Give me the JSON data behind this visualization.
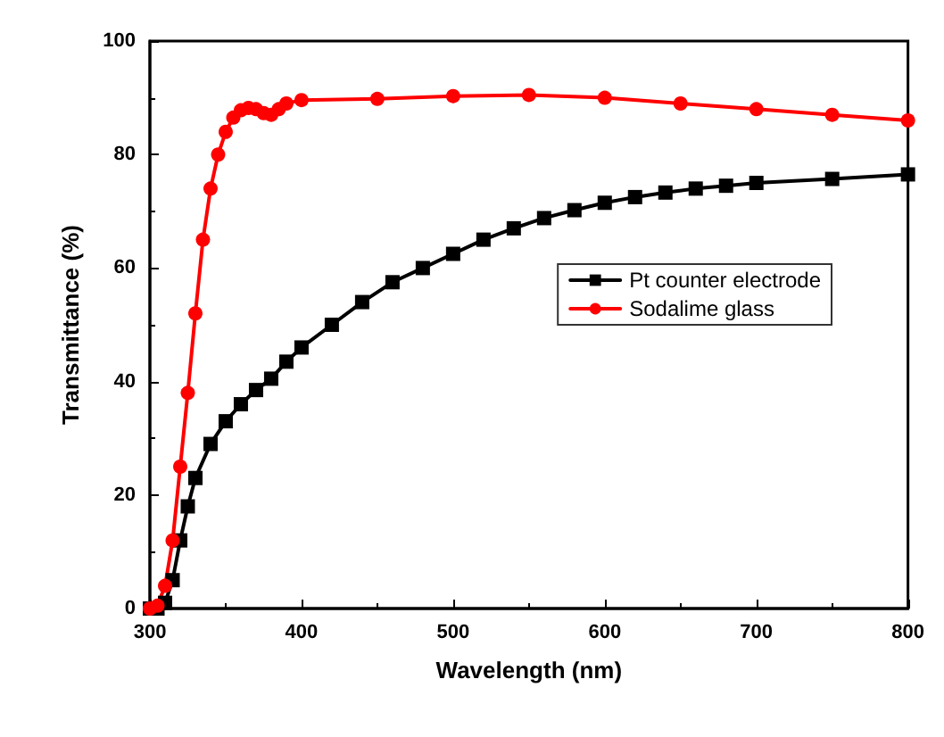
{
  "chart_data": {
    "type": "line",
    "xlabel": "Wavelength (nm)",
    "ylabel": "Transmittance (%)",
    "xlim": [
      300,
      800
    ],
    "xticks": [
      300,
      400,
      500,
      600,
      700,
      800
    ],
    "ylim": [
      0,
      100
    ],
    "yticks": [
      0,
      20,
      40,
      60,
      80,
      100
    ],
    "grid": false,
    "legend": "right",
    "series": [
      {
        "name": "Pt counter electrode",
        "color": "#000000",
        "marker": "square",
        "x": [
          300,
          305,
          310,
          315,
          320,
          325,
          330,
          340,
          350,
          360,
          370,
          380,
          390,
          400,
          420,
          440,
          460,
          480,
          500,
          520,
          540,
          560,
          580,
          600,
          620,
          640,
          660,
          680,
          700,
          750,
          800
        ],
        "values": [
          0,
          0,
          1,
          5,
          12,
          18,
          23,
          29,
          33,
          36,
          38.5,
          40.5,
          43.5,
          46,
          50,
          54,
          57.5,
          60,
          62.5,
          65,
          67,
          68.8,
          70.2,
          71.5,
          72.5,
          73.3,
          74,
          74.5,
          75,
          75.7,
          76.5
        ]
      },
      {
        "name": "Sodalime glass",
        "color": "#ff0000",
        "marker": "circle",
        "x": [
          300,
          305,
          310,
          315,
          320,
          325,
          330,
          335,
          340,
          345,
          350,
          355,
          360,
          365,
          370,
          375,
          380,
          385,
          390,
          400,
          450,
          500,
          550,
          600,
          650,
          700,
          750,
          800
        ],
        "values": [
          0,
          0.5,
          4,
          12,
          25,
          38,
          52,
          65,
          74,
          80,
          84,
          86.5,
          87.8,
          88.2,
          88,
          87.3,
          87,
          88,
          89,
          89.6,
          89.8,
          90.3,
          90.5,
          90,
          89,
          88,
          87,
          86
        ]
      }
    ]
  }
}
